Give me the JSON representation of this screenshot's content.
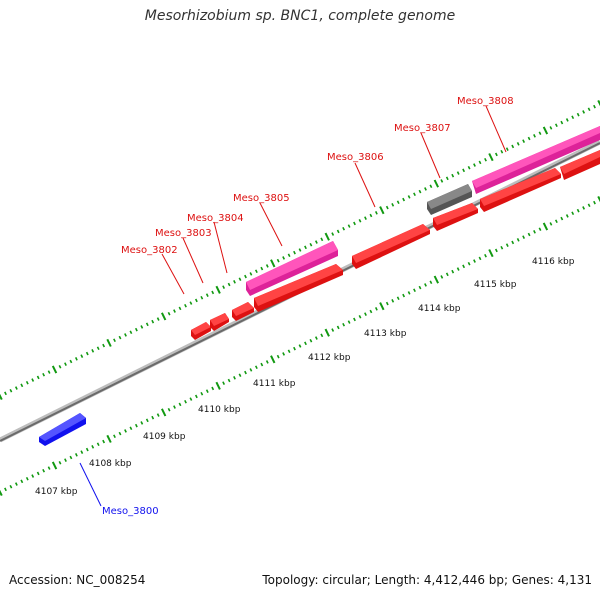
{
  "title": "Mesorhizobium sp. BNC1, complete genome",
  "footer": {
    "accession": "Accession: NC_008254",
    "summary": "Topology: circular; Length: 4,412,446 bp; Genes: 4,131"
  },
  "colors": {
    "forward_gene": "#ee1111",
    "reverse_gene": "#1111ee",
    "rna_gene": "#ee44aa",
    "other_gene": "#666666",
    "backbone": "#888888",
    "tick": "#119911"
  },
  "genes": [
    {
      "label": "Meso_3800",
      "color": "#1010dd"
    },
    {
      "label": "Meso_3802",
      "color": "#dd1111"
    },
    {
      "label": "Meso_3803",
      "color": "#dd1111"
    },
    {
      "label": "Meso_3804",
      "color": "#dd1111"
    },
    {
      "label": "Meso_3805",
      "color": "#dd1111"
    },
    {
      "label": "Meso_3806",
      "color": "#dd1111"
    },
    {
      "label": "Meso_3807",
      "color": "#dd1111"
    },
    {
      "label": "Meso_3808",
      "color": "#dd1111"
    }
  ],
  "kbp_labels": [
    "4107 kbp",
    "4108 kbp",
    "4109 kbp",
    "4110 kbp",
    "4111 kbp",
    "4112 kbp",
    "4113 kbp",
    "4114 kbp",
    "4115 kbp",
    "4116 kbp"
  ]
}
